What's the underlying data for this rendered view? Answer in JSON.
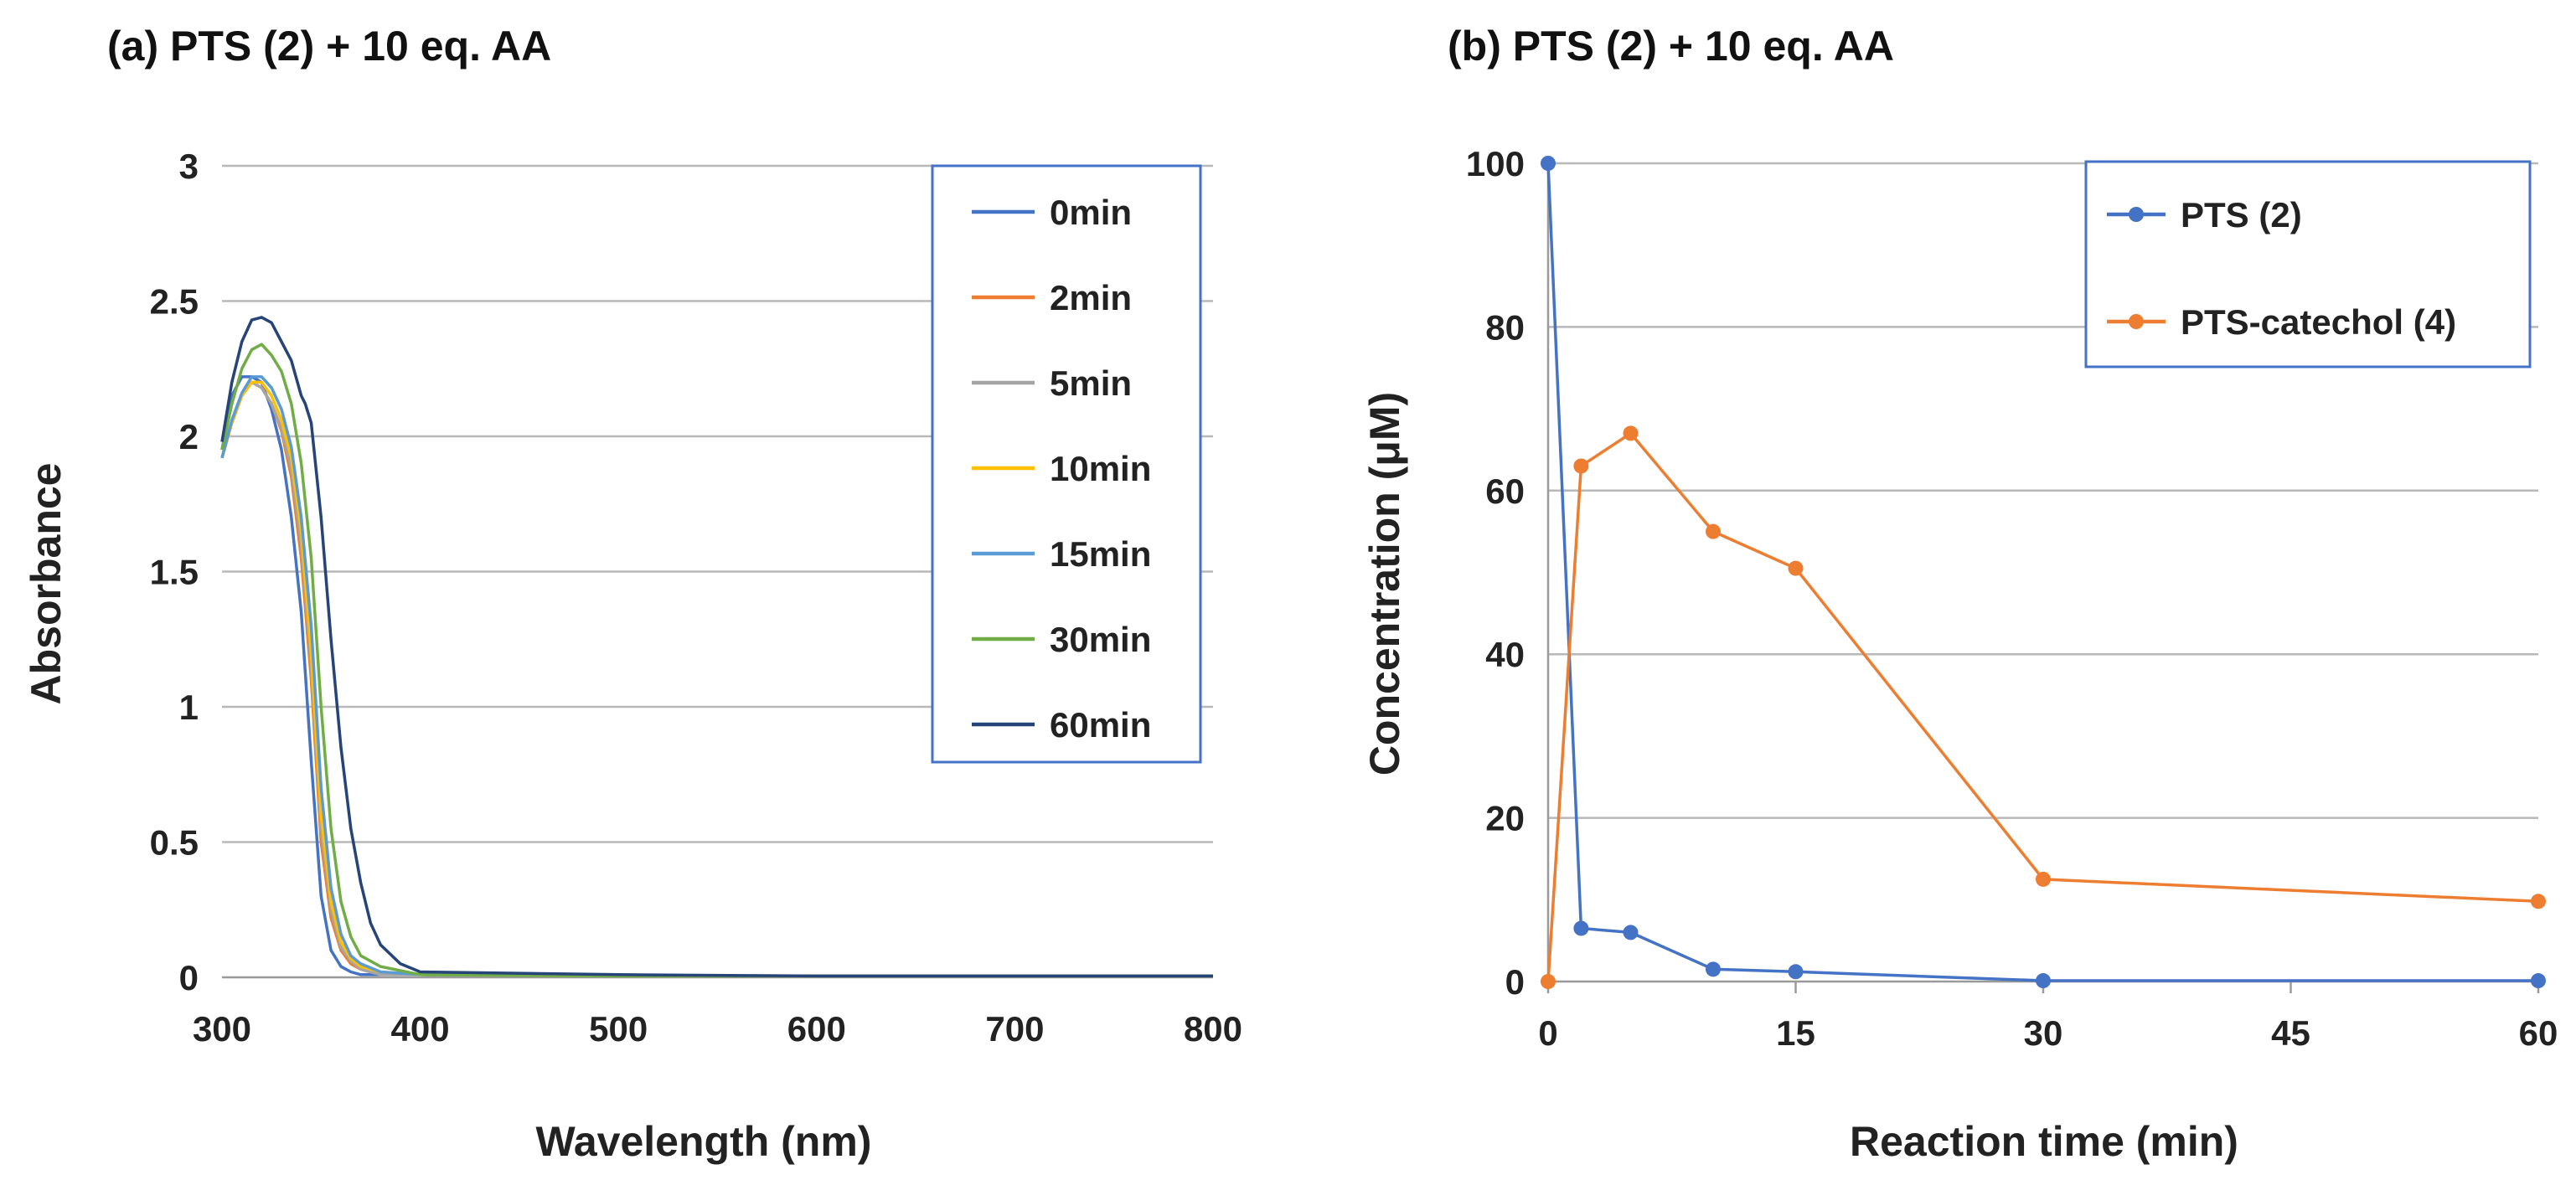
{
  "chart_data": [
    {
      "type": "line",
      "title": "(a) PTS (2)  + 10 eq. AA",
      "xlabel": "Wavelength (nm)",
      "ylabel": "Absorbance",
      "xlim": [
        300,
        800
      ],
      "ylim": [
        0,
        3
      ],
      "xticks": [
        "300",
        "400",
        "500",
        "600",
        "700",
        "800"
      ],
      "yticks": [
        "0",
        "0.5",
        "1",
        "1.5",
        "2",
        "2.5",
        "3"
      ],
      "grid": true,
      "legend": "top-right",
      "series": [
        {
          "name": "0min",
          "color": "#4472c4",
          "x": [
            300,
            305,
            310,
            315,
            320,
            325,
            330,
            335,
            340,
            345,
            350,
            355,
            360,
            365,
            370,
            380,
            400,
            500,
            600,
            700,
            800
          ],
          "y": [
            1.95,
            2.15,
            2.22,
            2.22,
            2.2,
            2.1,
            1.95,
            1.7,
            1.35,
            0.8,
            0.3,
            0.1,
            0.04,
            0.02,
            0.01,
            0.01,
            0.01,
            0.005,
            0.005,
            0.005,
            0.005
          ]
        },
        {
          "name": "2min",
          "color": "#ed7d31",
          "x": [
            300,
            305,
            310,
            315,
            320,
            325,
            330,
            335,
            340,
            345,
            350,
            355,
            360,
            365,
            370,
            380,
            400,
            500,
            600,
            700,
            800
          ],
          "y": [
            1.92,
            2.05,
            2.15,
            2.2,
            2.18,
            2.12,
            2.02,
            1.85,
            1.55,
            1.1,
            0.5,
            0.22,
            0.1,
            0.05,
            0.03,
            0.01,
            0.01,
            0.005,
            0.005,
            0.005,
            0.005
          ]
        },
        {
          "name": "5min",
          "color": "#a5a5a5",
          "x": [
            300,
            305,
            310,
            315,
            320,
            325,
            330,
            335,
            340,
            345,
            350,
            355,
            360,
            365,
            370,
            380,
            400,
            500,
            600,
            700,
            800
          ],
          "y": [
            1.92,
            2.05,
            2.15,
            2.2,
            2.18,
            2.12,
            2.03,
            1.88,
            1.6,
            1.15,
            0.55,
            0.25,
            0.11,
            0.06,
            0.03,
            0.01,
            0.01,
            0.005,
            0.005,
            0.005,
            0.005
          ]
        },
        {
          "name": "10min",
          "color": "#ffc000",
          "x": [
            300,
            305,
            310,
            315,
            320,
            325,
            330,
            335,
            340,
            345,
            350,
            355,
            360,
            365,
            370,
            380,
            400,
            500,
            600,
            700,
            800
          ],
          "y": [
            1.92,
            2.05,
            2.15,
            2.2,
            2.2,
            2.15,
            2.06,
            1.92,
            1.65,
            1.2,
            0.6,
            0.28,
            0.13,
            0.07,
            0.04,
            0.02,
            0.01,
            0.005,
            0.005,
            0.005,
            0.005
          ]
        },
        {
          "name": "15min",
          "color": "#5b9bd5",
          "x": [
            300,
            305,
            310,
            315,
            320,
            325,
            330,
            335,
            340,
            345,
            350,
            355,
            360,
            365,
            370,
            380,
            400,
            500,
            600,
            700,
            800
          ],
          "y": [
            1.92,
            2.06,
            2.16,
            2.22,
            2.22,
            2.18,
            2.1,
            1.96,
            1.7,
            1.3,
            0.7,
            0.33,
            0.16,
            0.08,
            0.05,
            0.02,
            0.01,
            0.005,
            0.005,
            0.005,
            0.005
          ]
        },
        {
          "name": "30min",
          "color": "#70ad47",
          "x": [
            300,
            305,
            310,
            315,
            320,
            325,
            330,
            335,
            340,
            345,
            350,
            355,
            360,
            365,
            370,
            380,
            400,
            500,
            600,
            700,
            800
          ],
          "y": [
            1.95,
            2.12,
            2.25,
            2.32,
            2.34,
            2.3,
            2.24,
            2.12,
            1.9,
            1.55,
            1.0,
            0.55,
            0.28,
            0.15,
            0.08,
            0.04,
            0.01,
            0.005,
            0.005,
            0.005,
            0.005
          ]
        },
        {
          "name": "60min",
          "color": "#264478",
          "x": [
            300,
            305,
            310,
            315,
            320,
            325,
            330,
            335,
            340,
            342,
            345,
            350,
            355,
            360,
            365,
            370,
            375,
            380,
            390,
            400,
            500,
            600,
            700,
            800
          ],
          "y": [
            1.98,
            2.2,
            2.35,
            2.43,
            2.44,
            2.42,
            2.35,
            2.28,
            2.15,
            2.12,
            2.05,
            1.7,
            1.25,
            0.85,
            0.55,
            0.35,
            0.2,
            0.12,
            0.05,
            0.02,
            0.01,
            0.005,
            0.005,
            0.005
          ]
        }
      ]
    },
    {
      "type": "line",
      "title": "(b) PTS (2)  + 10 eq. AA",
      "xlabel": "Reaction time (min)",
      "ylabel": "Concentration (μM)",
      "xlim": [
        0,
        60
      ],
      "ylim": [
        0,
        100
      ],
      "xticks": [
        "0",
        "15",
        "30",
        "45",
        "60"
      ],
      "yticks": [
        "0",
        "20",
        "40",
        "60",
        "80",
        "100"
      ],
      "grid": true,
      "legend": "top-right",
      "series": [
        {
          "name": "PTS (2)",
          "color": "#4472c4",
          "x": [
            0,
            2,
            5,
            10,
            15,
            30,
            60
          ],
          "y": [
            100,
            6.5,
            6,
            1.5,
            1.2,
            0.1,
            0.1
          ]
        },
        {
          "name": "PTS-catechol (4)",
          "color": "#ed7d31",
          "x": [
            0,
            2,
            5,
            10,
            15,
            30,
            60
          ],
          "y": [
            0,
            63,
            67,
            55,
            50.5,
            12.5,
            9.8
          ]
        }
      ]
    }
  ]
}
